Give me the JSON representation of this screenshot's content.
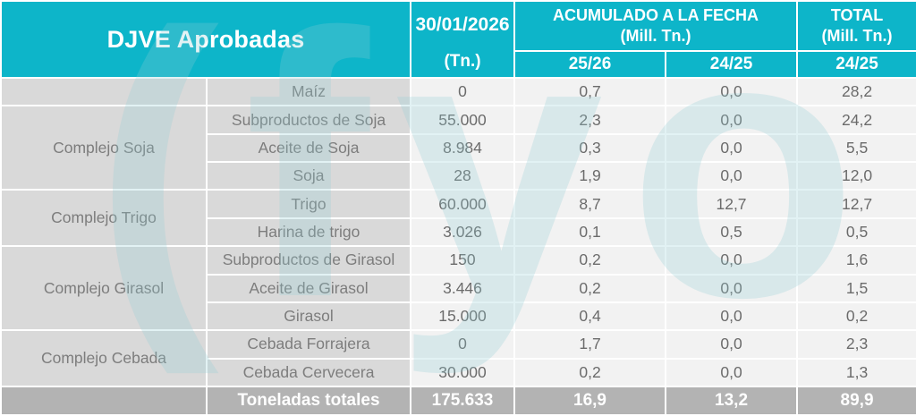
{
  "chart_data": {
    "type": "table",
    "title": "DJVE Aprobadas",
    "column_groups": {
      "date": {
        "line1": "30/01/2026",
        "line2": "(Tn.)"
      },
      "acumulado": {
        "line1": "ACUMULADO A LA FECHA",
        "line2": "(Mill. Tn.)",
        "subcolumns": [
          "25/26",
          "24/25"
        ]
      },
      "total": {
        "line1": "TOTAL",
        "line2": "(Mill. Tn.)",
        "subcolumn": "24/25"
      }
    },
    "value_column_keys": [
      "tn",
      "acum-25-26",
      "acum-24-25",
      "total-24-25"
    ],
    "rows": [
      {
        "group": {
          "label": "",
          "span": 1
        },
        "product": "Maíz",
        "values": [
          "0",
          "0,7",
          "0,0",
          "28,2"
        ]
      },
      {
        "group": {
          "label": "Complejo Soja",
          "span": 3
        },
        "product": "Subproductos de Soja",
        "values": [
          "55.000",
          "2,3",
          "0,0",
          "24,2"
        ]
      },
      {
        "product": "Aceite de Soja",
        "values": [
          "8.984",
          "0,3",
          "0,0",
          "5,5"
        ]
      },
      {
        "product": "Soja",
        "values": [
          "28",
          "1,9",
          "0,0",
          "12,0"
        ]
      },
      {
        "group": {
          "label": "Complejo Trigo",
          "span": 2
        },
        "product": "Trigo",
        "values": [
          "60.000",
          "8,7",
          "12,7",
          "12,7"
        ]
      },
      {
        "product": "Harina de trigo",
        "values": [
          "3.026",
          "0,1",
          "0,5",
          "0,5"
        ]
      },
      {
        "group": {
          "label": "Complejo Girasol",
          "span": 3
        },
        "product": "Subproductos de Girasol",
        "values": [
          "150",
          "0,2",
          "0,0",
          "1,6"
        ]
      },
      {
        "product": "Aceite de Girasol",
        "values": [
          "3.446",
          "0,2",
          "0,0",
          "1,5"
        ]
      },
      {
        "product": "Girasol",
        "values": [
          "15.000",
          "0,4",
          "0,0",
          "0,2"
        ]
      },
      {
        "group": {
          "label": "Complejo Cebada",
          "span": 2
        },
        "product": "Cebada Forrajera",
        "values": [
          "0",
          "1,7",
          "0,0",
          "2,3"
        ]
      },
      {
        "product": "Cebada Cervecera",
        "values": [
          "30.000",
          "0,2",
          "0,0",
          "1,3"
        ]
      }
    ],
    "total_row": {
      "label": "Toneladas totales",
      "values": [
        "175.633",
        "16,9",
        "13,2",
        "89,9"
      ]
    }
  },
  "watermark": {
    "text": "(fyo"
  },
  "colors": {
    "accent": "#0db5c9",
    "group_cell_bg": "#d9d9d9",
    "data_cell_bg": "#f2f2f2",
    "total_row_bg": "#b3b3b3",
    "body_text": "#7d7d7d",
    "num_text": "#6b6b6b",
    "header_text": "#ffffff"
  }
}
